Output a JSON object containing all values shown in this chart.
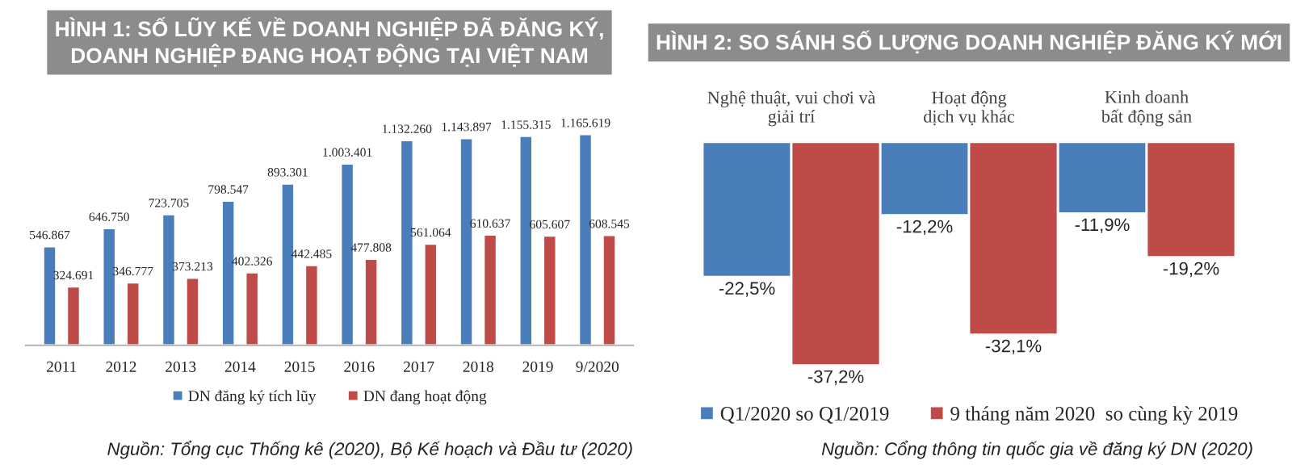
{
  "chart_data": [
    {
      "type": "bar",
      "title": "HÌNH 1: SỐ LŨY KẾ VỀ DOANH NGHIỆP ĐÃ ĐĂNG KÝ,\nDOANH NGHIỆP ĐANG HOẠT ĐỘNG TẠI VIỆT NAM",
      "categories": [
        "2011",
        "2012",
        "2013",
        "2014",
        "2015",
        "2016",
        "2017",
        "2018",
        "2019",
        "9/2020"
      ],
      "series": [
        {
          "name": "DN đăng ký tích lũy",
          "color": "#4a7ebb",
          "values": [
            546867,
            646750,
            723705,
            798547,
            893301,
            1003401,
            1132260,
            1143897,
            1155315,
            1165619
          ],
          "value_labels": [
            "546.867",
            "646.750",
            "723.705",
            "798.547",
            "893.301",
            "1.003.401",
            "1.132.260",
            "1.143.897",
            "1.155.315",
            "1.165.619"
          ]
        },
        {
          "name": "DN đang hoạt động",
          "color": "#be4b48",
          "values": [
            324691,
            346777,
            373213,
            402326,
            442485,
            477808,
            561064,
            610637,
            605607,
            608545
          ],
          "value_labels": [
            "324.691",
            "346.777",
            "373.213",
            "402.326",
            "442.485",
            "477.808",
            "561.064",
            "610.637",
            "605.607",
            "608.545"
          ]
        }
      ],
      "legend": "bottom",
      "tick_labels": "x",
      "grid": false,
      "annotations": [
        "Nguồn: Tổng cục Thống kê (2020), Bộ Kế hoạch và Đầu tư (2020)"
      ]
    },
    {
      "type": "bar",
      "title": "HÌNH 2: SO SÁNH SỐ LƯỢNG DOANH NGHIỆP ĐĂNG KÝ MỚI",
      "categories": [
        "Nghệ thuật, vui chơi và\ngiải trí",
        "Hoạt động\ndịch vụ khác",
        "Kinh doanh\nbất động sản"
      ],
      "series": [
        {
          "name": "Q1/2020 so Q1/2019",
          "color": "#4a7ebb",
          "values": [
            -22.5,
            -12.2,
            -11.9
          ],
          "value_labels": [
            "-22,5%",
            "-12,2%",
            "-11,9%"
          ]
        },
        {
          "name": "9 tháng năm 2020  so cùng kỳ 2019",
          "color": "#be4b48",
          "values": [
            -37.2,
            -32.1,
            -19.2
          ],
          "value_labels": [
            "-37,2%",
            "-32,1%",
            "-19,2%"
          ]
        }
      ],
      "legend": "bottom",
      "tick_labels": "x",
      "grid": false,
      "annotations": [
        "Nguồn: Cổng thông tin quốc gia về đăng ký DN (2020)"
      ]
    }
  ]
}
